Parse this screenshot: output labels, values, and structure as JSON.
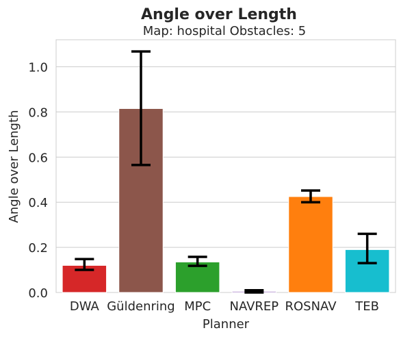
{
  "chart_data": {
    "type": "bar",
    "title": "Angle over Length",
    "subtitle": "Map: hospital Obstacles: 5",
    "xlabel": "Planner",
    "ylabel": "Angle over Length",
    "categories": [
      "DWA",
      "Güldenring",
      "MPC",
      "NAVREP",
      "ROSNAV",
      "TEB"
    ],
    "values": [
      0.12,
      0.815,
      0.135,
      0.005,
      0.425,
      0.19
    ],
    "error_low": [
      0.1,
      0.565,
      0.118,
      0.0,
      0.4,
      0.13
    ],
    "error_high": [
      0.148,
      1.068,
      0.158,
      0.01,
      0.452,
      0.26
    ],
    "colors": [
      "#d62728",
      "#8c564b",
      "#2ca02c",
      "#9467bd",
      "#ff7f0e",
      "#17becf"
    ],
    "ylim": [
      0,
      1.12
    ],
    "yticks": [
      "0.0",
      "0.2",
      "0.4",
      "0.6",
      "0.8",
      "1.0"
    ],
    "grid": true
  }
}
